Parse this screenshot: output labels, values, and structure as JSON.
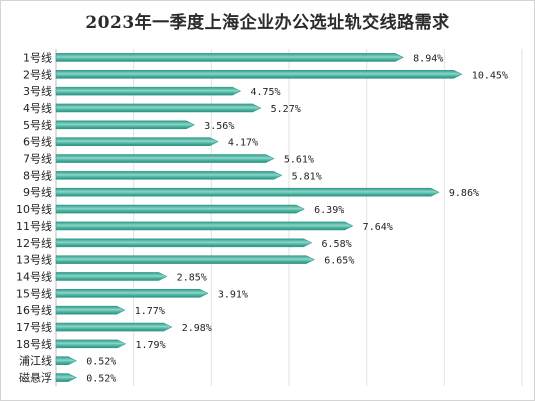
{
  "chart_data": {
    "type": "bar",
    "orientation": "horizontal",
    "title": "2023年一季度上海企业办公选址轨交线路需求",
    "categories": [
      "1号线",
      "2号线",
      "3号线",
      "4号线",
      "5号线",
      "6号线",
      "7号线",
      "8号线",
      "9号线",
      "10号线",
      "11号线",
      "12号线",
      "13号线",
      "14号线",
      "15号线",
      "16号线",
      "17号线",
      "18号线",
      "浦江线",
      "磁悬浮"
    ],
    "values": [
      8.94,
      10.45,
      4.75,
      5.27,
      3.56,
      4.17,
      5.61,
      5.81,
      9.86,
      6.39,
      7.64,
      6.58,
      6.65,
      2.85,
      3.91,
      1.77,
      2.98,
      1.79,
      0.52,
      0.52
    ],
    "value_labels": [
      "8.94%",
      "10.45%",
      "4.75%",
      "5.27%",
      "3.56%",
      "4.17%",
      "5.61%",
      "5.81%",
      "9.86%",
      "6.39%",
      "7.64%",
      "6.58%",
      "6.65%",
      "2.85%",
      "3.91%",
      "1.77%",
      "2.98%",
      "1.79%",
      "0.52%",
      "0.52%"
    ],
    "xlim": [
      0,
      12
    ],
    "grid": true,
    "legend": "none",
    "bar_color": "#3fae9c",
    "bar_highlight": "#9fdcd1"
  }
}
